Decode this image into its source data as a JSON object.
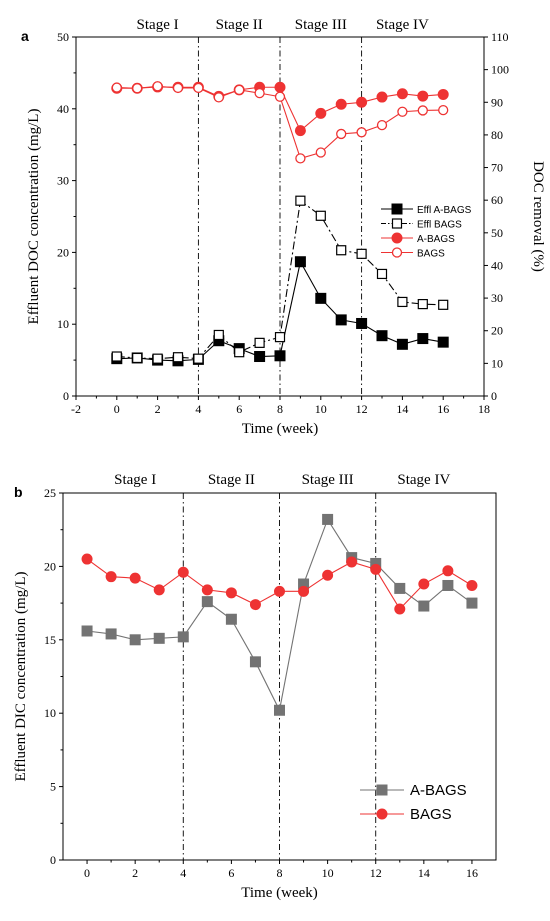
{
  "chart_data": [
    {
      "panel_label": "a",
      "type": "line",
      "xlabel": "Time (week)",
      "ylabel": "Effluent DOC concentration (mg/L)",
      "y2label": "DOC removal (%)",
      "xlim": [
        -2,
        18
      ],
      "xticks": [
        -2,
        0,
        2,
        4,
        6,
        8,
        10,
        12,
        14,
        16,
        18
      ],
      "ylim": [
        0,
        50
      ],
      "yticks": [
        0,
        10,
        20,
        30,
        40,
        50
      ],
      "y2lim": [
        0,
        110
      ],
      "y2ticks": [
        0,
        10,
        20,
        30,
        40,
        50,
        60,
        70,
        80,
        90,
        100,
        110
      ],
      "stage_dividers": [
        4,
        8,
        12
      ],
      "stages": [
        {
          "label": "Stage I",
          "center": 2
        },
        {
          "label": "Stage II",
          "center": 6
        },
        {
          "label": "Stage III",
          "center": 10
        },
        {
          "label": "Stage IV",
          "center": 14
        }
      ],
      "legend_position": "right-middle",
      "x": [
        0,
        1,
        2,
        3,
        4,
        5,
        6,
        7,
        8,
        9,
        10,
        11,
        12,
        13,
        14,
        15,
        16
      ],
      "series": [
        {
          "name": "Effl A-BAGS",
          "axis": "left",
          "color": "#000000",
          "marker": "square-filled",
          "line": "solid",
          "values": [
            5.2,
            5.3,
            5.0,
            4.9,
            5.1,
            7.7,
            6.6,
            5.5,
            5.6,
            18.7,
            13.6,
            10.6,
            10.1,
            8.4,
            7.2,
            8.0,
            7.5
          ]
        },
        {
          "name": "Effl BAGS",
          "axis": "left",
          "color": "#000000",
          "marker": "square-open",
          "line": "dashdot",
          "values": [
            5.5,
            5.3,
            5.2,
            5.4,
            5.2,
            8.5,
            6.1,
            7.4,
            8.2,
            27.2,
            25.1,
            20.3,
            19.8,
            17.0,
            13.1,
            12.8,
            12.7
          ]
        },
        {
          "name": "A-BAGS",
          "axis": "right",
          "color": "#ee3333",
          "marker": "circle-filled",
          "line": "solid",
          "values": [
            94.3,
            94.3,
            94.7,
            94.6,
            94.6,
            91.8,
            93.8,
            94.6,
            94.6,
            81.3,
            86.6,
            89.4,
            90.0,
            91.6,
            92.6,
            91.9,
            92.4
          ]
        },
        {
          "name": "BAGS",
          "axis": "right",
          "color": "#ee3333",
          "marker": "circle-open",
          "line": "solid",
          "values": [
            94.5,
            94.3,
            94.9,
            94.4,
            94.4,
            91.5,
            93.8,
            92.8,
            91.7,
            72.8,
            74.6,
            80.3,
            80.8,
            83.0,
            87.1,
            87.5,
            87.6
          ]
        }
      ]
    },
    {
      "panel_label": "b",
      "type": "line",
      "xlabel": "Time (week)",
      "ylabel": "Effluent DIC concentration (mg/L)",
      "xlim": [
        -1,
        17
      ],
      "xticks": [
        0,
        2,
        4,
        6,
        8,
        10,
        12,
        14,
        16
      ],
      "ylim": [
        0,
        25
      ],
      "yticks": [
        0,
        5,
        10,
        15,
        20,
        25
      ],
      "stage_dividers": [
        4,
        8,
        12
      ],
      "stages": [
        {
          "label": "Stage I",
          "center": 2
        },
        {
          "label": "Stage II",
          "center": 6
        },
        {
          "label": "Stage III",
          "center": 10
        },
        {
          "label": "Stage IV",
          "center": 14
        }
      ],
      "legend_position": "bottom-right",
      "x": [
        0,
        1,
        2,
        3,
        4,
        5,
        6,
        7,
        8,
        9,
        10,
        11,
        12,
        13,
        14,
        15,
        16
      ],
      "series": [
        {
          "name": "A-BAGS",
          "color": "#737373",
          "marker": "square-filled",
          "line": "solid",
          "values": [
            15.6,
            15.4,
            15.0,
            15.1,
            15.2,
            17.6,
            16.4,
            13.5,
            10.2,
            18.8,
            23.2,
            20.6,
            20.2,
            18.5,
            17.3,
            18.7,
            17.5
          ]
        },
        {
          "name": "BAGS",
          "color": "#ee3333",
          "marker": "circle-filled",
          "line": "solid",
          "values": [
            20.5,
            19.3,
            19.2,
            18.4,
            19.6,
            18.4,
            18.2,
            17.4,
            18.3,
            18.3,
            19.4,
            20.3,
            19.8,
            17.1,
            18.8,
            19.7,
            18.7
          ]
        }
      ]
    }
  ]
}
